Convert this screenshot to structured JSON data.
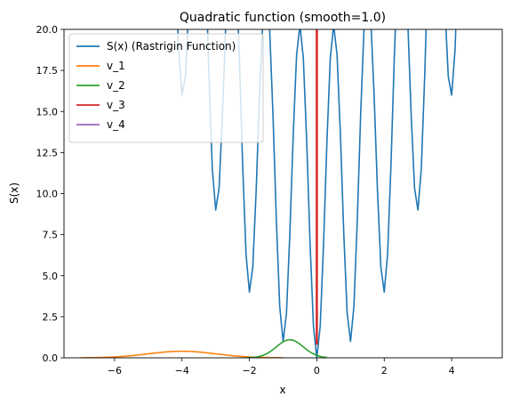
{
  "chart_data": {
    "type": "line",
    "title": "Quadratic function (smooth=1.0)",
    "xlabel": "x",
    "ylabel": "S(x)",
    "xlim": [
      -7.5,
      5.5
    ],
    "ylim": [
      0,
      20
    ],
    "xticks": [
      -6,
      -4,
      -2,
      0,
      2,
      4
    ],
    "yticks": [
      0.0,
      2.5,
      5.0,
      7.5,
      10.0,
      12.5,
      15.0,
      17.5,
      20.0
    ],
    "xtick_labels": [
      "−6",
      "−4",
      "−2",
      "0",
      "2",
      "4"
    ],
    "ytick_labels": [
      "0.0",
      "2.5",
      "5.0",
      "7.5",
      "10.0",
      "12.5",
      "15.0",
      "17.5",
      "20.0"
    ],
    "grid": false,
    "legend_position": "top-left",
    "series": [
      {
        "name": "S(x) (Rastrigin Function)",
        "color": "#1f77b4",
        "kind": "rastrigin",
        "x_range": [
          -7,
          5
        ],
        "samples": 121
      },
      {
        "name": "v_1",
        "color": "#ff7f0e",
        "kind": "gaussian",
        "x_range": [
          -7,
          -1
        ],
        "center": -4.0,
        "peak": 0.4,
        "sigma": 1.0
      },
      {
        "name": "v_2",
        "color": "#2ca02c",
        "kind": "gaussian",
        "x_range": [
          -2.1,
          0.3
        ],
        "center": -0.8,
        "peak": 1.1,
        "sigma": 0.4
      },
      {
        "name": "v_3",
        "color": "#d62728",
        "kind": "spike",
        "x": [
          0,
          0
        ],
        "y": [
          0.8,
          20
        ]
      },
      {
        "name": "v_4",
        "color": "#9467bd",
        "kind": "none"
      }
    ]
  }
}
